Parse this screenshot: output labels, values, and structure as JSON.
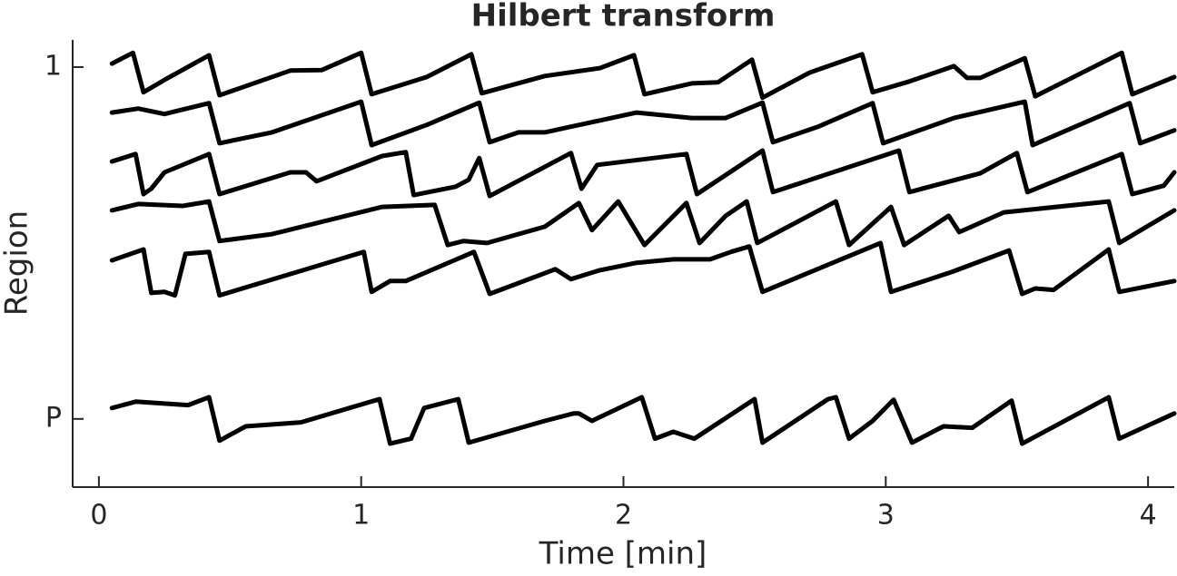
{
  "chart_data": {
    "type": "line",
    "title": "Hilbert transform",
    "x_label": "Time [min]",
    "y_label": "Region",
    "color": "#000000",
    "xlim": [
      -0.1,
      4.1
    ],
    "xticks": [
      0,
      1,
      2,
      3,
      4
    ],
    "ylim": [
      9.5,
      0.45
    ],
    "yticks": [
      1,
      {
        "value": 8.12,
        "label": "P"
      }
    ],
    "series": [
      {
        "x": [
          0.05,
          0.13,
          0.17,
          0.25,
          0.42,
          0.46,
          0.73,
          0.85,
          1.0,
          1.04,
          1.25,
          1.42,
          1.46,
          1.7,
          1.91,
          2.04,
          2.08,
          2.26,
          2.36,
          2.49,
          2.53,
          2.71,
          2.91,
          2.95,
          3.09,
          3.26,
          3.31,
          3.36,
          3.53,
          3.57,
          3.9,
          3.94,
          4.1
        ],
        "values": [
          0.93,
          0.71,
          1.51,
          1.26,
          0.76,
          1.57,
          1.07,
          1.06,
          0.71,
          1.55,
          1.2,
          0.74,
          1.53,
          1.18,
          1.02,
          0.76,
          1.55,
          1.33,
          1.31,
          0.85,
          1.62,
          1.11,
          0.74,
          1.51,
          1.29,
          0.98,
          1.22,
          1.22,
          0.82,
          1.59,
          0.71,
          1.55,
          1.2
        ]
      },
      {
        "x": [
          0.05,
          0.15,
          0.25,
          0.42,
          0.46,
          0.66,
          1.0,
          1.04,
          1.25,
          1.45,
          1.49,
          1.6,
          1.7,
          2.05,
          2.26,
          2.39,
          2.53,
          2.57,
          2.74,
          2.95,
          2.99,
          3.26,
          3.53,
          3.56,
          3.93,
          3.97,
          4.1
        ],
        "values": [
          1.92,
          1.84,
          1.95,
          1.73,
          2.54,
          2.32,
          1.7,
          2.58,
          2.17,
          1.72,
          2.52,
          2.32,
          2.32,
          1.92,
          2.03,
          2.03,
          1.72,
          2.52,
          2.21,
          1.73,
          2.54,
          2.03,
          1.7,
          2.58,
          1.73,
          2.54,
          2.28
        ]
      },
      {
        "x": [
          0.05,
          0.14,
          0.17,
          0.2,
          0.25,
          0.42,
          0.46,
          0.73,
          0.79,
          0.83,
          1.08,
          1.17,
          1.2,
          1.36,
          1.41,
          1.45,
          1.49,
          1.8,
          1.84,
          1.9,
          2.24,
          2.28,
          2.53,
          2.57,
          3.05,
          3.09,
          3.36,
          3.5,
          3.54,
          3.9,
          3.94,
          4.06,
          4.1
        ],
        "values": [
          2.91,
          2.76,
          3.57,
          3.46,
          3.13,
          2.76,
          3.57,
          3.13,
          3.13,
          3.31,
          2.8,
          2.72,
          3.59,
          3.42,
          3.28,
          2.84,
          3.61,
          2.74,
          3.46,
          2.98,
          2.76,
          3.57,
          2.69,
          3.53,
          2.69,
          3.53,
          3.15,
          2.74,
          3.53,
          2.76,
          3.57,
          3.4,
          3.13
        ]
      },
      {
        "x": [
          0.05,
          0.15,
          0.32,
          0.42,
          0.46,
          0.66,
          1.08,
          1.28,
          1.33,
          1.39,
          1.48,
          1.7,
          1.83,
          1.88,
          1.98,
          2.08,
          2.24,
          2.29,
          2.39,
          2.47,
          2.51,
          2.81,
          2.86,
          3.02,
          3.07,
          3.24,
          3.28,
          3.45,
          3.85,
          3.89,
          4.1
        ],
        "values": [
          3.9,
          3.77,
          3.81,
          3.72,
          4.52,
          4.38,
          3.83,
          3.79,
          4.6,
          4.52,
          4.56,
          4.23,
          3.75,
          4.3,
          3.72,
          4.6,
          3.75,
          4.56,
          4.01,
          3.72,
          4.56,
          3.72,
          4.6,
          3.83,
          4.6,
          4.01,
          4.34,
          3.94,
          3.72,
          4.56,
          3.9
        ]
      },
      {
        "x": [
          0.05,
          0.17,
          0.2,
          0.25,
          0.29,
          0.33,
          0.42,
          0.46,
          1.01,
          1.04,
          1.11,
          1.17,
          1.43,
          1.49,
          1.74,
          1.8,
          1.91,
          2.05,
          2.19,
          2.33,
          2.41,
          2.48,
          2.53,
          2.98,
          3.02,
          3.25,
          3.47,
          3.52,
          3.57,
          3.64,
          3.85,
          3.89,
          4.1
        ],
        "values": [
          4.91,
          4.69,
          5.57,
          5.55,
          5.62,
          4.78,
          4.74,
          5.62,
          4.74,
          5.55,
          5.33,
          5.33,
          4.74,
          5.59,
          5.09,
          5.29,
          5.11,
          4.96,
          4.89,
          4.89,
          4.74,
          4.63,
          5.55,
          4.56,
          5.55,
          5.15,
          4.71,
          5.59,
          5.48,
          5.51,
          4.69,
          5.55,
          5.33
        ]
      },
      {
        "x": [
          0.05,
          0.14,
          0.34,
          0.42,
          0.46,
          0.56,
          0.77,
          1.07,
          1.11,
          1.19,
          1.24,
          1.37,
          1.41,
          1.7,
          1.81,
          1.83,
          1.88,
          2.07,
          2.12,
          2.19,
          2.27,
          2.5,
          2.53,
          2.78,
          2.81,
          2.86,
          2.95,
          3.03,
          3.1,
          3.22,
          3.33,
          3.48,
          3.52,
          3.85,
          3.89,
          4.1
        ],
        "values": [
          7.9,
          7.77,
          7.84,
          7.68,
          8.56,
          8.27,
          8.19,
          7.72,
          8.62,
          8.52,
          7.9,
          7.72,
          8.6,
          8.16,
          8.01,
          8.01,
          8.16,
          7.68,
          8.52,
          8.38,
          8.52,
          7.72,
          8.6,
          7.72,
          7.68,
          8.52,
          8.16,
          7.73,
          8.6,
          8.27,
          8.3,
          7.75,
          8.62,
          7.68,
          8.52,
          8.01
        ]
      }
    ]
  }
}
